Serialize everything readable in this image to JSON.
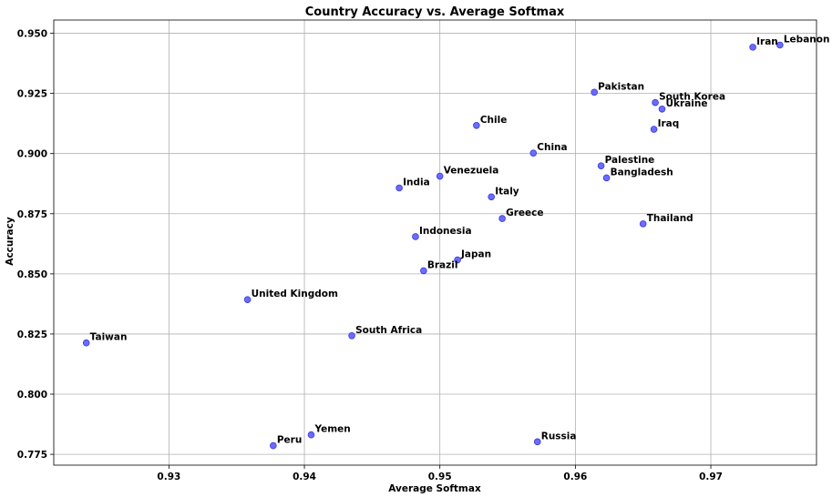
{
  "chart_data": {
    "type": "scatter",
    "title": "Country Accuracy vs. Average Softmax",
    "xlabel": "Average Softmax",
    "ylabel": "Accuracy",
    "xlim": [
      0.9215,
      0.9778
    ],
    "ylim": [
      0.7705,
      0.9555
    ],
    "xticks": [
      "0.93",
      "0.94",
      "0.95",
      "0.96",
      "0.97"
    ],
    "xtick_values": [
      0.93,
      0.94,
      0.95,
      0.96,
      0.97
    ],
    "yticks": [
      "0.775",
      "0.800",
      "0.825",
      "0.850",
      "0.875",
      "0.900",
      "0.925",
      "0.950"
    ],
    "ytick_values": [
      0.775,
      0.8,
      0.825,
      0.85,
      0.875,
      0.9,
      0.925,
      0.95
    ],
    "grid": true,
    "marker_color": "#6b6bff",
    "points": [
      {
        "label": "Iran",
        "x": 0.9731,
        "y": 0.9442
      },
      {
        "label": "Lebanon",
        "x": 0.9751,
        "y": 0.9451
      },
      {
        "label": "Pakistan",
        "x": 0.9614,
        "y": 0.9255
      },
      {
        "label": "South Korea",
        "x": 0.9659,
        "y": 0.9212
      },
      {
        "label": "Ukraine",
        "x": 0.9664,
        "y": 0.9185
      },
      {
        "label": "Iraq",
        "x": 0.9658,
        "y": 0.9101
      },
      {
        "label": "Chile",
        "x": 0.9527,
        "y": 0.9117
      },
      {
        "label": "China",
        "x": 0.9569,
        "y": 0.9002
      },
      {
        "label": "Palestine",
        "x": 0.9619,
        "y": 0.8949
      },
      {
        "label": "Bangladesh",
        "x": 0.9623,
        "y": 0.8899
      },
      {
        "label": "Venezuela",
        "x": 0.95,
        "y": 0.8906
      },
      {
        "label": "India",
        "x": 0.947,
        "y": 0.8857
      },
      {
        "label": "Italy",
        "x": 0.9538,
        "y": 0.882
      },
      {
        "label": "Greece",
        "x": 0.9546,
        "y": 0.873
      },
      {
        "label": "Thailand",
        "x": 0.965,
        "y": 0.8708
      },
      {
        "label": "Indonesia",
        "x": 0.9482,
        "y": 0.8655
      },
      {
        "label": "Japan",
        "x": 0.9513,
        "y": 0.8558
      },
      {
        "label": "Brazil",
        "x": 0.9488,
        "y": 0.8513
      },
      {
        "label": "United Kingdom",
        "x": 0.9358,
        "y": 0.8393
      },
      {
        "label": "South Africa",
        "x": 0.9435,
        "y": 0.8243
      },
      {
        "label": "Taiwan",
        "x": 0.9239,
        "y": 0.8213
      },
      {
        "label": "Yemen",
        "x": 0.9405,
        "y": 0.7831
      },
      {
        "label": "Peru",
        "x": 0.9377,
        "y": 0.7786
      },
      {
        "label": "Russia",
        "x": 0.9572,
        "y": 0.7802
      }
    ]
  }
}
